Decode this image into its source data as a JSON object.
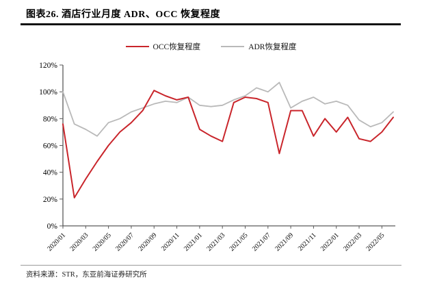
{
  "header": {
    "title": "图表26. 酒店行业月度 ADR、OCC 恢复程度"
  },
  "legend": {
    "items": [
      {
        "label": "OCC恢复程度",
        "color": "#c9252b"
      },
      {
        "label": "ADR恢复程度",
        "color": "#b9b9b9"
      }
    ]
  },
  "chart_data": {
    "type": "line",
    "title": "图表26. 酒店行业月度 ADR、OCC 恢复程度",
    "x": [
      "2020/01",
      "2020/02",
      "2020/03",
      "2020/04",
      "2020/05",
      "2020/06",
      "2020/07",
      "2020/08",
      "2020/09",
      "2020/10",
      "2020/11",
      "2020/12",
      "2021/01",
      "2021/02",
      "2021/03",
      "2021/04",
      "2021/05",
      "2021/06",
      "2021/07",
      "2021/08",
      "2021/09",
      "2021/10",
      "2021/11",
      "2021/12",
      "2022/01",
      "2022/02",
      "2022/03",
      "2022/04",
      "2022/05",
      "2022/06"
    ],
    "x_tick_labels": [
      "2020/01",
      "2020/03",
      "2020/05",
      "2020/07",
      "2020/09",
      "2020/11",
      "2021/01",
      "2021/03",
      "2021/05",
      "2021/07",
      "2021/09",
      "2021/11",
      "2022/01",
      "2022/03",
      "2022/05"
    ],
    "y_tick_labels": [
      "0%",
      "20%",
      "40%",
      "60%",
      "80%",
      "100%",
      "120%"
    ],
    "ylim": [
      0,
      120
    ],
    "y_tick_step": 20,
    "grid": false,
    "legend_position": "top",
    "axis_color": "#595959",
    "text_color": "#000000",
    "series": [
      {
        "name": "OCC恢复程度",
        "color": "#c9252b",
        "values": [
          76,
          21,
          35,
          48,
          60,
          70,
          77,
          86,
          101,
          97,
          94,
          96,
          72,
          67,
          63,
          92,
          96,
          95,
          92,
          54,
          86,
          86,
          67,
          80,
          70,
          81,
          65,
          63,
          70,
          81
        ]
      },
      {
        "name": "ADR恢复程度",
        "color": "#b9b9b9",
        "values": [
          100,
          76,
          72,
          67,
          77,
          80,
          85,
          88,
          91,
          93,
          92,
          96,
          90,
          89,
          90,
          94,
          97,
          103,
          100,
          107,
          88,
          93,
          96,
          91,
          93,
          90,
          79,
          74,
          77,
          85
        ]
      }
    ]
  },
  "footer": {
    "source": "资料来源：STR，东亚前海证券研究所"
  }
}
